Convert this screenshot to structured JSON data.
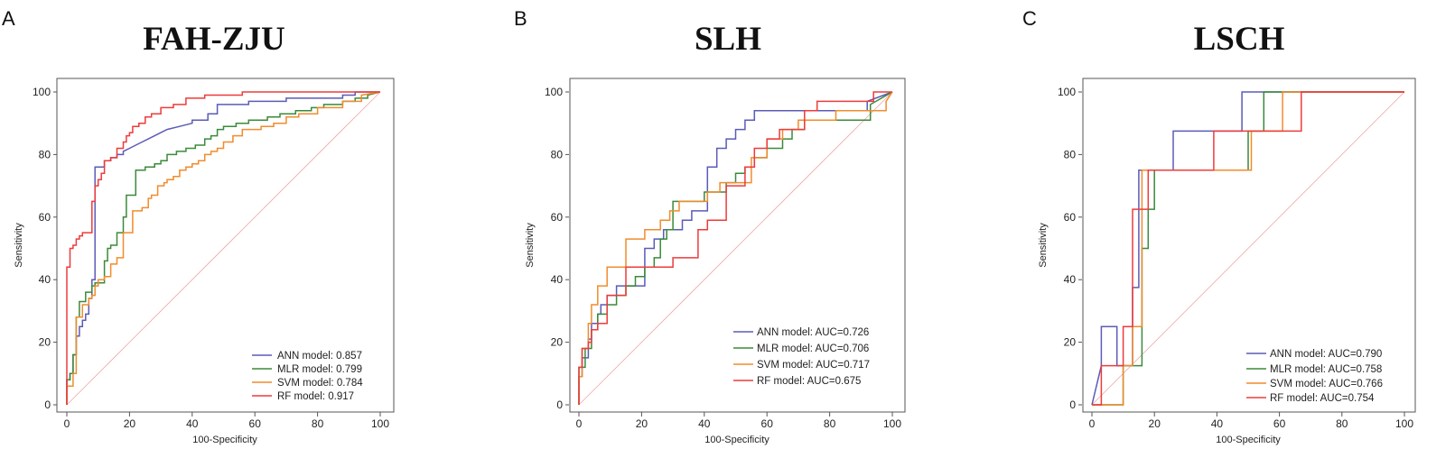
{
  "chart_data": [
    {
      "type": "line",
      "panel_label": "A",
      "title": "FAH-ZJU",
      "xlabel": "100-Specificity",
      "ylabel": "Sensitivity",
      "xlim": [
        0,
        100
      ],
      "ylim": [
        0,
        100
      ],
      "xticks": [
        "0",
        "20",
        "40",
        "60",
        "80",
        "100"
      ],
      "yticks": [
        "0",
        "20",
        "40",
        "60",
        "80",
        "100"
      ],
      "legend_position": "bottom-right",
      "diagonal_color": "#f0a6a6",
      "series": [
        {
          "name": "ANN model: 0.857",
          "color": "#5b5bb8",
          "x": [
            0,
            0,
            1,
            1,
            2,
            2,
            3,
            3,
            4,
            4,
            5,
            5,
            6,
            6,
            7,
            7,
            8,
            8,
            9,
            9,
            12,
            12,
            14,
            14,
            16,
            16,
            18,
            18,
            20,
            24,
            26,
            28,
            32,
            36,
            40,
            40,
            45,
            45,
            48,
            48,
            58,
            58,
            70,
            70,
            88,
            88,
            92,
            92,
            100
          ],
          "y": [
            0,
            8,
            8,
            10,
            10,
            16,
            16,
            22,
            22,
            25,
            25,
            27,
            27,
            29,
            29,
            34,
            34,
            40,
            40,
            76,
            76,
            78,
            78,
            79,
            79,
            80,
            80,
            81,
            82,
            84,
            85,
            86,
            88,
            89,
            90,
            91,
            91,
            93,
            93,
            96,
            96,
            97,
            97,
            98,
            98,
            99,
            99,
            100,
            100
          ]
        },
        {
          "name": "MLR model: 0.799",
          "color": "#3a8a3a",
          "x": [
            0,
            0,
            1,
            1,
            2,
            2,
            3,
            3,
            4,
            4,
            6,
            6,
            8,
            8,
            9,
            9,
            12,
            12,
            13,
            13,
            14,
            14,
            16,
            16,
            18,
            18,
            19,
            19,
            22,
            22,
            25,
            25,
            28,
            28,
            30,
            30,
            32,
            32,
            35,
            35,
            38,
            38,
            41,
            41,
            44,
            44,
            46,
            46,
            48,
            48,
            50,
            50,
            54,
            54,
            58,
            58,
            64,
            64,
            68,
            68,
            73,
            73,
            78,
            78,
            82,
            82,
            88,
            88,
            92,
            92,
            96,
            96,
            100
          ],
          "y": [
            0,
            8,
            8,
            10,
            10,
            16,
            16,
            28,
            28,
            33,
            33,
            36,
            36,
            38,
            38,
            39,
            39,
            46,
            46,
            50,
            50,
            51,
            51,
            55,
            55,
            60,
            60,
            67,
            67,
            75,
            75,
            76,
            76,
            77,
            77,
            78,
            78,
            80,
            80,
            81,
            81,
            82,
            82,
            83,
            83,
            85,
            85,
            86,
            86,
            88,
            88,
            89,
            89,
            90,
            90,
            91,
            91,
            92,
            92,
            93,
            93,
            94,
            94,
            95,
            95,
            96,
            96,
            97,
            97,
            98,
            98,
            99,
            100
          ]
        },
        {
          "name": "SVM model: 0.784",
          "color": "#f08c2c",
          "x": [
            0,
            0,
            2,
            2,
            3,
            3,
            5,
            5,
            7,
            7,
            8,
            8,
            9,
            9,
            10,
            10,
            12,
            12,
            14,
            14,
            16,
            16,
            18,
            18,
            21,
            21,
            24,
            24,
            26,
            26,
            27,
            27,
            29,
            29,
            31,
            31,
            32,
            32,
            34,
            34,
            36,
            36,
            38,
            38,
            40,
            40,
            42,
            42,
            44,
            44,
            46,
            46,
            48,
            48,
            50,
            50,
            53,
            53,
            56,
            56,
            62,
            62,
            66,
            66,
            70,
            70,
            74,
            74,
            80,
            80,
            88,
            88,
            94,
            94,
            100
          ],
          "y": [
            0,
            6,
            6,
            10,
            10,
            28,
            28,
            32,
            32,
            34,
            34,
            35,
            35,
            38,
            38,
            40,
            40,
            41,
            41,
            45,
            45,
            47,
            47,
            55,
            55,
            62,
            62,
            63,
            63,
            66,
            66,
            67,
            67,
            70,
            70,
            71,
            71,
            72,
            72,
            73,
            73,
            75,
            75,
            76,
            76,
            77,
            77,
            78,
            78,
            80,
            80,
            81,
            81,
            82,
            82,
            84,
            84,
            86,
            86,
            88,
            88,
            89,
            89,
            90,
            90,
            92,
            92,
            93,
            93,
            95,
            95,
            97,
            97,
            99,
            100
          ]
        },
        {
          "name": "RF model: 0.917",
          "color": "#ee3b3b",
          "x": [
            0,
            0,
            1,
            1,
            2,
            2,
            3,
            3,
            4,
            4,
            5,
            5,
            8,
            8,
            9,
            9,
            10,
            10,
            11,
            11,
            12,
            12,
            14,
            14,
            16,
            16,
            18,
            18,
            19,
            19,
            20,
            20,
            21,
            21,
            23,
            23,
            25,
            25,
            27,
            27,
            30,
            30,
            34,
            34,
            38,
            38,
            44,
            44,
            56,
            56,
            66,
            66,
            100
          ],
          "y": [
            0,
            44,
            44,
            50,
            50,
            51,
            51,
            53,
            53,
            54,
            54,
            55,
            55,
            65,
            65,
            70,
            70,
            72,
            72,
            74,
            74,
            78,
            78,
            79,
            79,
            82,
            82,
            84,
            84,
            86,
            86,
            87,
            87,
            89,
            89,
            90,
            90,
            92,
            92,
            93,
            93,
            95,
            95,
            96,
            96,
            98,
            98,
            99,
            99,
            100,
            100,
            100,
            100
          ]
        }
      ]
    },
    {
      "type": "line",
      "panel_label": "B",
      "title": "SLH",
      "xlabel": "100-Specificity",
      "ylabel": "Sensitivity",
      "xlim": [
        0,
        100
      ],
      "ylim": [
        0,
        100
      ],
      "xticks": [
        "0",
        "20",
        "40",
        "60",
        "80",
        "100"
      ],
      "yticks": [
        "0",
        "20",
        "40",
        "60",
        "80",
        "100"
      ],
      "legend_position": "bottom-right",
      "diagonal_color": "#f0a6a6",
      "series": [
        {
          "name": "ANN model: AUC=0.726",
          "color": "#5b5bb8",
          "x": [
            0,
            0,
            1,
            1,
            3,
            3,
            4,
            4,
            6,
            6,
            7,
            7,
            9,
            9,
            12,
            12,
            21,
            21,
            24,
            24,
            27,
            27,
            33,
            33,
            36,
            36,
            39,
            39,
            41,
            41,
            44,
            44,
            47,
            47,
            50,
            50,
            53,
            53,
            56,
            56,
            66,
            66,
            72,
            72,
            83,
            83,
            92,
            92,
            100
          ],
          "y": [
            0,
            9,
            9,
            15,
            15,
            21,
            21,
            26,
            26,
            29,
            29,
            32,
            32,
            35,
            35,
            38,
            38,
            50,
            50,
            53,
            53,
            56,
            56,
            59,
            59,
            62,
            62,
            62,
            62,
            76,
            76,
            82,
            82,
            85,
            85,
            88,
            88,
            91,
            91,
            94,
            94,
            94,
            94,
            94,
            94,
            94,
            94,
            97,
            100
          ]
        },
        {
          "name": "MLR model:  AUC=0.706",
          "color": "#3a8a3a",
          "x": [
            0,
            0,
            2,
            2,
            4,
            4,
            6,
            6,
            9,
            9,
            12,
            12,
            15,
            15,
            18,
            18,
            21,
            21,
            24,
            24,
            26,
            26,
            28,
            28,
            30,
            30,
            40,
            40,
            47,
            47,
            50,
            50,
            53,
            53,
            56,
            56,
            60,
            60,
            65,
            65,
            68,
            68,
            72,
            72,
            80,
            80,
            93,
            93,
            100
          ],
          "y": [
            0,
            12,
            12,
            18,
            18,
            24,
            24,
            29,
            29,
            32,
            32,
            35,
            35,
            38,
            38,
            41,
            41,
            44,
            44,
            47,
            47,
            53,
            53,
            56,
            56,
            65,
            65,
            68,
            68,
            71,
            71,
            74,
            74,
            76,
            76,
            79,
            79,
            82,
            82,
            85,
            85,
            88,
            88,
            91,
            91,
            91,
            91,
            96,
            100
          ]
        },
        {
          "name": "SVM model:  AUC=0.717",
          "color": "#f08c2c",
          "x": [
            0,
            0,
            1,
            1,
            3,
            3,
            4,
            4,
            6,
            6,
            9,
            9,
            15,
            15,
            21,
            21,
            26,
            26,
            29,
            29,
            32,
            32,
            35,
            35,
            38,
            38,
            41,
            41,
            45,
            45,
            50,
            50,
            55,
            55,
            60,
            60,
            65,
            65,
            70,
            70,
            82,
            82,
            90,
            90,
            98,
            98,
            100
          ],
          "y": [
            0,
            9,
            9,
            18,
            18,
            26,
            26,
            32,
            32,
            38,
            38,
            44,
            44,
            53,
            53,
            56,
            56,
            59,
            59,
            62,
            62,
            65,
            65,
            65,
            65,
            65,
            65,
            68,
            68,
            71,
            71,
            71,
            71,
            79,
            79,
            85,
            85,
            88,
            88,
            91,
            91,
            94,
            94,
            94,
            94,
            97,
            100
          ]
        },
        {
          "name": "RF model:  AUC=0.675",
          "color": "#ee3b3b",
          "x": [
            0,
            0,
            1,
            1,
            3,
            3,
            4,
            4,
            6,
            6,
            9,
            9,
            15,
            15,
            21,
            21,
            30,
            30,
            38,
            38,
            41,
            41,
            47,
            47,
            53,
            53,
            56,
            56,
            60,
            60,
            64,
            64,
            72,
            72,
            76,
            76,
            85,
            85,
            94,
            94,
            100
          ],
          "y": [
            0,
            12,
            12,
            18,
            18,
            20,
            20,
            24,
            24,
            26,
            26,
            35,
            35,
            44,
            44,
            44,
            44,
            47,
            47,
            56,
            56,
            59,
            59,
            70,
            70,
            76,
            76,
            82,
            82,
            85,
            85,
            88,
            88,
            94,
            94,
            97,
            97,
            97,
            97,
            100,
            100
          ]
        }
      ]
    },
    {
      "type": "line",
      "panel_label": "C",
      "title": "LSCH",
      "xlabel": "100-Specificity",
      "ylabel": "Sensitivity",
      "xlim": [
        0,
        100
      ],
      "ylim": [
        0,
        100
      ],
      "xticks": [
        "0",
        "20",
        "40",
        "60",
        "80",
        "100"
      ],
      "yticks": [
        "0",
        "20",
        "40",
        "60",
        "80",
        "100"
      ],
      "legend_position": "bottom-right",
      "diagonal_color": "#f0a6a6",
      "series": [
        {
          "name": "ANN model: AUC=0.790",
          "color": "#5b5bb8",
          "x": [
            0,
            3,
            3,
            8,
            8,
            13,
            13,
            15,
            15,
            18,
            18,
            26,
            26,
            48,
            48,
            100
          ],
          "y": [
            0,
            12.5,
            25,
            25,
            12.5,
            12.5,
            37.5,
            37.5,
            75,
            75,
            75,
            75,
            87.5,
            87.5,
            100,
            100
          ]
        },
        {
          "name": "MLR model:  AUC=0.758",
          "color": "#3a8a3a",
          "x": [
            0,
            10,
            10,
            16,
            16,
            18,
            18,
            20,
            20,
            50,
            50,
            55,
            55,
            100
          ],
          "y": [
            0,
            0,
            12.5,
            12.5,
            50,
            50,
            62.5,
            62.5,
            75,
            75,
            87.5,
            87.5,
            100,
            100
          ]
        },
        {
          "name": "SVM model:  AUC=0.766",
          "color": "#f08c2c",
          "x": [
            0,
            10,
            10,
            13,
            13,
            16,
            16,
            18,
            18,
            51,
            51,
            61,
            61,
            100
          ],
          "y": [
            0,
            0,
            12.5,
            12.5,
            25,
            25,
            75,
            75,
            75,
            75,
            87.5,
            87.5,
            100,
            100
          ]
        },
        {
          "name": "RF model:  AUC=0.754",
          "color": "#ee3b3b",
          "x": [
            0,
            3,
            3,
            10,
            10,
            13,
            13,
            18,
            18,
            29,
            29,
            39,
            39,
            67,
            67,
            100
          ],
          "y": [
            0,
            0,
            12.5,
            12.5,
            25,
            25,
            62.5,
            62.5,
            75,
            75,
            75,
            75,
            87.5,
            87.5,
            100,
            100
          ]
        }
      ]
    }
  ]
}
